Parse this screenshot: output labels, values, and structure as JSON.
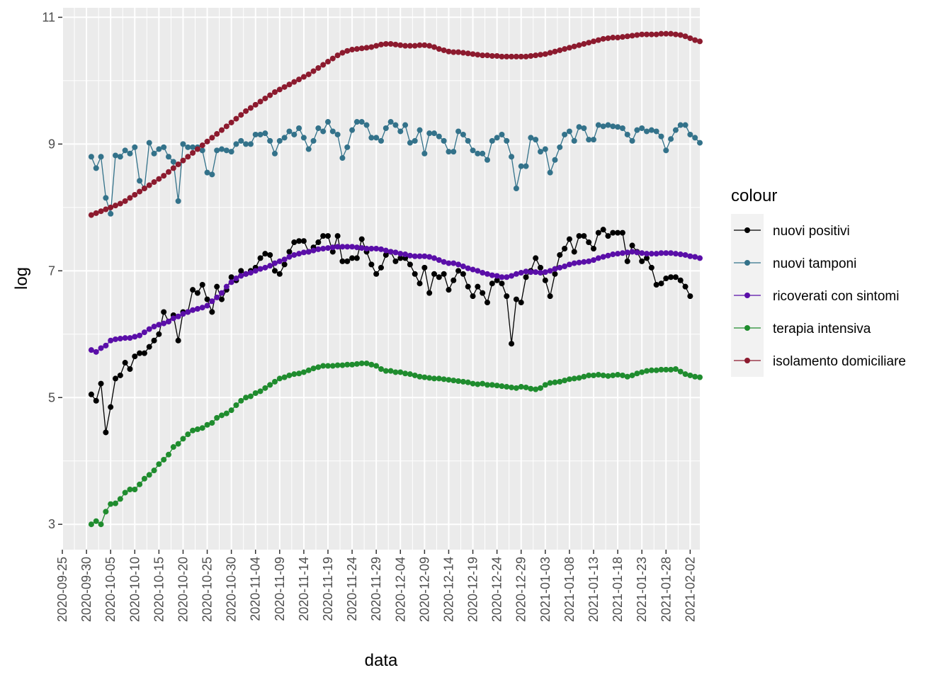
{
  "chart_data": {
    "type": "line",
    "title": "",
    "xlabel": "data",
    "ylabel": "log",
    "xlim": [
      "2020-09-25",
      "2021-02-04"
    ],
    "ylim": [
      2.6,
      11.15
    ],
    "x_tick_labels": [
      "2020-09-25",
      "2020-09-30",
      "2020-10-05",
      "2020-10-10",
      "2020-10-15",
      "2020-10-20",
      "2020-10-25",
      "2020-10-30",
      "2020-11-04",
      "2020-11-09",
      "2020-11-14",
      "2020-11-19",
      "2020-11-24",
      "2020-11-29",
      "2020-12-04",
      "2020-12-09",
      "2020-12-14",
      "2020-12-19",
      "2020-12-24",
      "2020-12-29",
      "2021-01-03",
      "2021-01-08",
      "2021-01-13",
      "2021-01-18",
      "2021-01-23",
      "2021-01-28",
      "2021-02-02"
    ],
    "y_tick_labels": [
      "3",
      "5",
      "7",
      "9",
      "11"
    ],
    "y_ticks": [
      3,
      5,
      7,
      9,
      11
    ],
    "grid": true,
    "legend": {
      "title": "colour",
      "position": "right"
    },
    "x_start": "2020-10-01",
    "series": [
      {
        "name": "nuovi positivi",
        "color": "#000000",
        "values": [
          5.05,
          4.95,
          5.22,
          4.45,
          4.85,
          5.3,
          5.35,
          5.55,
          5.45,
          5.65,
          5.7,
          5.7,
          5.8,
          5.9,
          6.0,
          6.35,
          6.2,
          6.3,
          5.9,
          6.35,
          6.35,
          6.7,
          6.65,
          6.78,
          6.55,
          6.35,
          6.75,
          6.55,
          6.7,
          6.9,
          6.85,
          7.0,
          6.95,
          7.0,
          7.05,
          7.2,
          7.27,
          7.25,
          7.0,
          6.95,
          7.1,
          7.3,
          7.45,
          7.47,
          7.47,
          7.3,
          7.37,
          7.45,
          7.55,
          7.55,
          7.3,
          7.55,
          7.15,
          7.15,
          7.2,
          7.2,
          7.5,
          7.3,
          7.1,
          6.95,
          7.05,
          7.25,
          7.3,
          7.15,
          7.2,
          7.2,
          7.1,
          6.95,
          6.8,
          7.05,
          6.65,
          6.95,
          6.9,
          6.95,
          6.7,
          6.85,
          7.0,
          6.95,
          6.75,
          6.6,
          6.75,
          6.65,
          6.5,
          6.8,
          6.85,
          6.8,
          6.6,
          5.85,
          6.55,
          6.5,
          6.9,
          7.0,
          7.2,
          7.05,
          6.85,
          6.6,
          6.95,
          7.25,
          7.35,
          7.5,
          7.3,
          7.55,
          7.55,
          7.45,
          7.35,
          7.6,
          7.65,
          7.55,
          7.6,
          7.6,
          7.6,
          7.15,
          7.4,
          7.3,
          7.15,
          7.2,
          7.05,
          6.78,
          6.8,
          6.88,
          6.9,
          6.9,
          6.85,
          6.75,
          6.6
        ]
      },
      {
        "name": "nuovi tamponi",
        "color": "#33728a",
        "values": [
          8.8,
          8.62,
          8.8,
          8.15,
          7.9,
          8.82,
          8.8,
          8.9,
          8.85,
          8.95,
          8.42,
          8.3,
          9.02,
          8.85,
          8.92,
          8.95,
          8.8,
          8.72,
          8.1,
          9.0,
          8.95,
          8.95,
          8.95,
          8.9,
          8.55,
          8.52,
          8.9,
          8.92,
          8.9,
          8.88,
          9.0,
          9.05,
          9.0,
          9.0,
          9.15,
          9.15,
          9.17,
          9.05,
          8.85,
          9.05,
          9.1,
          9.2,
          9.15,
          9.25,
          9.1,
          8.92,
          9.05,
          9.25,
          9.2,
          9.35,
          9.2,
          9.15,
          8.78,
          8.95,
          9.22,
          9.35,
          9.35,
          9.3,
          9.1,
          9.1,
          9.05,
          9.25,
          9.35,
          9.3,
          9.2,
          9.3,
          9.02,
          9.05,
          9.22,
          8.85,
          9.17,
          9.17,
          9.12,
          9.05,
          8.88,
          8.88,
          9.2,
          9.15,
          9.05,
          8.9,
          8.85,
          8.85,
          8.75,
          9.05,
          9.1,
          9.15,
          9.05,
          8.8,
          8.3,
          8.65,
          8.65,
          9.1,
          9.07,
          8.88,
          8.92,
          8.55,
          8.75,
          8.95,
          9.15,
          9.2,
          9.05,
          9.27,
          9.25,
          9.07,
          9.07,
          9.3,
          9.28,
          9.3,
          9.28,
          9.27,
          9.25,
          9.15,
          9.05,
          9.22,
          9.25,
          9.2,
          9.22,
          9.2,
          9.12,
          8.9,
          9.08,
          9.22,
          9.3,
          9.3,
          9.15,
          9.1,
          9.02
        ]
      },
      {
        "name": "ricoverati con sintomi",
        "color": "#5a0ea8",
        "values": [
          5.75,
          5.72,
          5.78,
          5.82,
          5.9,
          5.92,
          5.93,
          5.94,
          5.94,
          5.96,
          5.98,
          6.03,
          6.08,
          6.12,
          6.15,
          6.17,
          6.2,
          6.25,
          6.28,
          6.32,
          6.35,
          6.38,
          6.4,
          6.42,
          6.45,
          6.52,
          6.58,
          6.65,
          6.75,
          6.82,
          6.88,
          6.92,
          6.95,
          6.97,
          7.0,
          7.03,
          7.05,
          7.08,
          7.12,
          7.15,
          7.18,
          7.22,
          7.25,
          7.27,
          7.29,
          7.3,
          7.32,
          7.34,
          7.35,
          7.36,
          7.37,
          7.38,
          7.38,
          7.38,
          7.38,
          7.37,
          7.36,
          7.35,
          7.35,
          7.35,
          7.34,
          7.32,
          7.3,
          7.29,
          7.27,
          7.26,
          7.24,
          7.23,
          7.23,
          7.23,
          7.22,
          7.2,
          7.17,
          7.14,
          7.12,
          7.12,
          7.1,
          7.07,
          7.04,
          7.02,
          7.0,
          6.97,
          6.95,
          6.93,
          6.92,
          6.9,
          6.9,
          6.92,
          6.95,
          6.97,
          6.99,
          6.98,
          6.98,
          6.97,
          6.98,
          7.0,
          7.03,
          7.05,
          7.07,
          7.1,
          7.12,
          7.13,
          7.14,
          7.15,
          7.17,
          7.2,
          7.22,
          7.24,
          7.26,
          7.27,
          7.28,
          7.29,
          7.3,
          7.29,
          7.28,
          7.27,
          7.27,
          7.27,
          7.28,
          7.28,
          7.28,
          7.27,
          7.26,
          7.25,
          7.23,
          7.22,
          7.2
        ]
      },
      {
        "name": "terapia intensiva",
        "color": "#1f8c2e",
        "values": [
          3.0,
          3.05,
          3.0,
          3.2,
          3.32,
          3.33,
          3.4,
          3.5,
          3.55,
          3.55,
          3.63,
          3.72,
          3.78,
          3.85,
          3.95,
          4.02,
          4.1,
          4.22,
          4.27,
          4.35,
          4.42,
          4.48,
          4.5,
          4.52,
          4.57,
          4.6,
          4.68,
          4.72,
          4.75,
          4.8,
          4.88,
          4.95,
          5.0,
          5.02,
          5.07,
          5.1,
          5.15,
          5.2,
          5.25,
          5.3,
          5.32,
          5.35,
          5.37,
          5.38,
          5.4,
          5.43,
          5.46,
          5.48,
          5.5,
          5.5,
          5.5,
          5.51,
          5.51,
          5.52,
          5.52,
          5.53,
          5.54,
          5.54,
          5.52,
          5.5,
          5.45,
          5.42,
          5.42,
          5.4,
          5.4,
          5.38,
          5.37,
          5.35,
          5.33,
          5.32,
          5.31,
          5.3,
          5.3,
          5.29,
          5.28,
          5.27,
          5.26,
          5.25,
          5.24,
          5.22,
          5.21,
          5.22,
          5.2,
          5.2,
          5.19,
          5.18,
          5.17,
          5.16,
          5.15,
          5.17,
          5.16,
          5.14,
          5.13,
          5.15,
          5.2,
          5.23,
          5.24,
          5.25,
          5.27,
          5.29,
          5.3,
          5.31,
          5.33,
          5.35,
          5.35,
          5.36,
          5.35,
          5.34,
          5.35,
          5.36,
          5.35,
          5.33,
          5.35,
          5.38,
          5.4,
          5.42,
          5.43,
          5.43,
          5.44,
          5.44,
          5.44,
          5.45,
          5.41,
          5.37,
          5.35,
          5.33,
          5.32
        ]
      },
      {
        "name": "isolamento domiciliare",
        "color": "#8c1a2e",
        "values": [
          7.88,
          7.91,
          7.94,
          7.97,
          8.0,
          8.03,
          8.06,
          8.1,
          8.15,
          8.2,
          8.25,
          8.3,
          8.35,
          8.4,
          8.45,
          8.5,
          8.56,
          8.62,
          8.68,
          8.74,
          8.8,
          8.86,
          8.92,
          8.98,
          9.04,
          9.1,
          9.16,
          9.22,
          9.28,
          9.34,
          9.4,
          9.46,
          9.52,
          9.57,
          9.62,
          9.67,
          9.72,
          9.77,
          9.82,
          9.86,
          9.9,
          9.94,
          9.98,
          10.02,
          10.06,
          10.1,
          10.15,
          10.2,
          10.25,
          10.3,
          10.35,
          10.4,
          10.44,
          10.47,
          10.49,
          10.5,
          10.51,
          10.52,
          10.53,
          10.55,
          10.57,
          10.58,
          10.58,
          10.57,
          10.56,
          10.55,
          10.55,
          10.55,
          10.56,
          10.56,
          10.55,
          10.53,
          10.5,
          10.48,
          10.46,
          10.45,
          10.45,
          10.44,
          10.43,
          10.42,
          10.41,
          10.4,
          10.4,
          10.39,
          10.39,
          10.38,
          10.38,
          10.38,
          10.38,
          10.38,
          10.38,
          10.39,
          10.4,
          10.41,
          10.42,
          10.44,
          10.46,
          10.48,
          10.5,
          10.52,
          10.54,
          10.56,
          10.58,
          10.6,
          10.62,
          10.64,
          10.66,
          10.67,
          10.68,
          10.68,
          10.69,
          10.7,
          10.71,
          10.72,
          10.73,
          10.73,
          10.73,
          10.73,
          10.74,
          10.74,
          10.74,
          10.73,
          10.72,
          10.7,
          10.67,
          10.64,
          10.62
        ]
      }
    ]
  }
}
